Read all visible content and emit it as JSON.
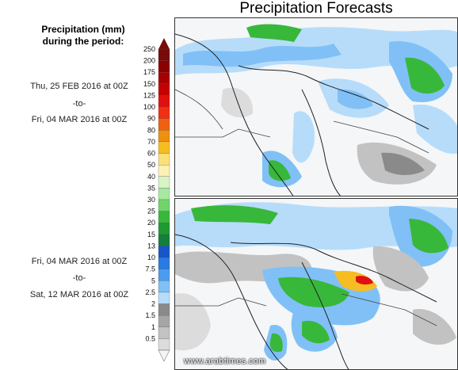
{
  "title": "Precipitation Forecasts",
  "legend": {
    "heading_line1": "Precipitation (mm)",
    "heading_line2": "during the period:",
    "levels": [
      "250",
      "200",
      "175",
      "150",
      "125",
      "100",
      "90",
      "80",
      "70",
      "60",
      "50",
      "40",
      "35",
      "30",
      "25",
      "20",
      "15",
      "13",
      "10",
      "7.5",
      "5",
      "2.5",
      "2",
      "1.5",
      "1",
      "0.5"
    ],
    "colors": [
      "#7a0a0a",
      "#8c0000",
      "#a80000",
      "#c40000",
      "#e01010",
      "#f03010",
      "#f06010",
      "#f09010",
      "#f6bd22",
      "#fae07a",
      "#fcf1b4",
      "#d7f4c4",
      "#a8e8a0",
      "#6fd46c",
      "#38b83a",
      "#1e9a32",
      "#12803a",
      "#1656c8",
      "#2a7ae4",
      "#4a9cf0",
      "#80c0f6",
      "#b6dcfa",
      "#8a8a8a",
      "#a6a6a6",
      "#c2c2c2",
      "#dcdcdc"
    ]
  },
  "periods": [
    {
      "start": "Thu, 25 FEB 2016 at 00Z",
      "sep": "-to-",
      "end": "Fri, 04 MAR 2016 at 00Z"
    },
    {
      "start": "Fri, 04 MAR 2016 at 00Z",
      "sep": "-to-",
      "end": "Sat, 12 MAR 2016 at 00Z"
    }
  ],
  "watermark": "www.arabtimes.com"
}
